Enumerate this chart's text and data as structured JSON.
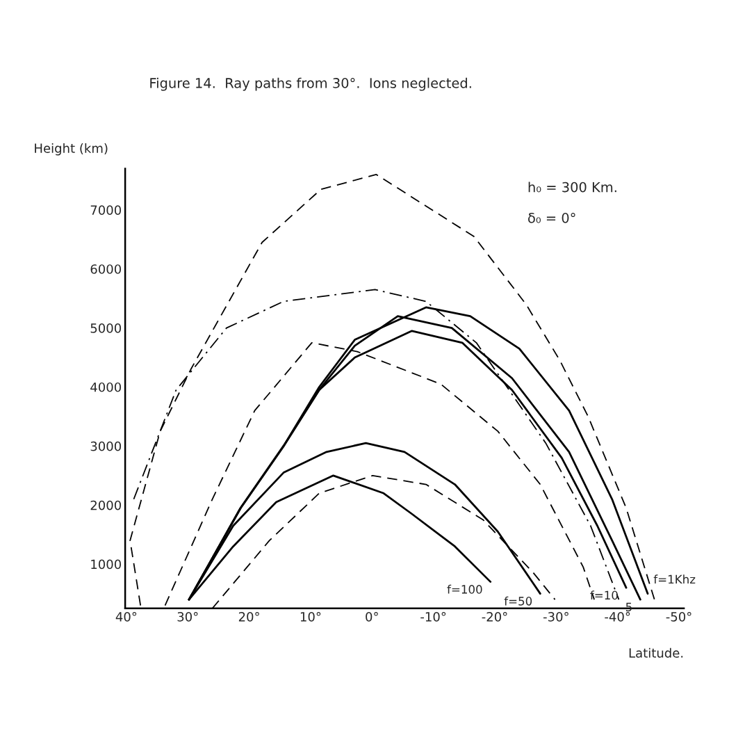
{
  "chart_data": {
    "type": "line",
    "title": "Figure 14.  Ray paths from 30°.  Ions neglected.",
    "xlabel": "Latitude.",
    "ylabel": "Height (km)",
    "annotations": [
      "h₀ = 300 Km.",
      "δ₀ = 0°"
    ],
    "xlim": [
      40.2,
      -50.8
    ],
    "ylim": [
      250,
      7700
    ],
    "xticks": [
      {
        "value": 40,
        "label": "40°"
      },
      {
        "value": 30,
        "label": "30°"
      },
      {
        "value": 20,
        "label": "20°"
      },
      {
        "value": 10,
        "label": "10°"
      },
      {
        "value": 0,
        "label": "0°"
      },
      {
        "value": -10,
        "label": "-10°"
      },
      {
        "value": -20,
        "label": "-20°"
      },
      {
        "value": -30,
        "label": "-30°"
      },
      {
        "value": -40,
        "label": "-40°"
      },
      {
        "value": -50,
        "label": "-50°"
      }
    ],
    "yticks": [
      1000,
      2000,
      3000,
      4000,
      5000,
      6000,
      7000
    ],
    "grid": false,
    "legend": false,
    "series": [
      {
        "name": "f=100",
        "color": "#000000",
        "line_style": "solid",
        "x": [
          29.8,
          22.6,
          15.6,
          6.3,
          -1.9,
          -6.5,
          -13.5,
          -19.3
        ],
        "values": [
          400,
          1300,
          2050,
          2500,
          2200,
          1850,
          1300,
          700
        ]
      },
      {
        "name": "f=50",
        "color": "#000000",
        "line_style": "solid",
        "x": [
          29.8,
          22.6,
          14.4,
          7.4,
          1.0,
          -5.3,
          -13.5,
          -20.5,
          -27.4
        ],
        "values": [
          400,
          1650,
          2550,
          2900,
          3050,
          2900,
          2350,
          1550,
          500
        ]
      },
      {
        "name": "f=10",
        "color": "#000000",
        "line_style": "solid",
        "x": [
          29.8,
          21.4,
          14.4,
          8.6,
          2.8,
          -6.5,
          -14.7,
          -22.8,
          -30.9,
          -36.7,
          -41.4
        ],
        "values": [
          400,
          1950,
          3000,
          3950,
          4500,
          4950,
          4750,
          3950,
          2800,
          1650,
          600
        ]
      },
      {
        "name": "5",
        "color": "#000000",
        "line_style": "solid",
        "x": [
          29.8,
          21.4,
          14.4,
          8.6,
          2.8,
          -4.2,
          -13.0,
          -22.8,
          -32.1,
          -39.1,
          -43.7
        ],
        "values": [
          400,
          1950,
          3000,
          3950,
          4700,
          5200,
          5000,
          4150,
          2900,
          1400,
          400
        ]
      },
      {
        "name": "f=1Khz",
        "color": "#000000",
        "line_style": "solid",
        "x": [
          29.8,
          21.4,
          14.4,
          8.6,
          2.8,
          -8.8,
          -16.0,
          -24.0,
          -32.1,
          -39.1,
          -44.9
        ],
        "values": [
          400,
          1950,
          3000,
          4000,
          4800,
          5350,
          5200,
          4650,
          3600,
          2100,
          500
        ]
      },
      {
        "color": "#000000",
        "line_style": "dashed",
        "x": [
          37.7,
          39.4,
          34.5,
          29.5,
          17.9,
          8.3,
          -0.7,
          -16.6,
          -25.1,
          -30.6,
          -35.2,
          -41.4,
          -46.0
        ],
        "values": [
          300,
          1400,
          3250,
          4300,
          6450,
          7350,
          7600,
          6550,
          5400,
          4450,
          3500,
          1950,
          400
        ]
      },
      {
        "color": "#000000",
        "line_style": "dashdot",
        "x": [
          38.8,
          31.9,
          23.7,
          14.4,
          -0.5,
          -8.8,
          -17.0,
          -28.3,
          -35.6,
          -40.2
        ],
        "values": [
          2100,
          3950,
          5000,
          5450,
          5650,
          5450,
          4750,
          3050,
          1650,
          400
        ]
      },
      {
        "color": "#000000",
        "line_style": "dashed",
        "x": [
          33.7,
          26.0,
          19.1,
          9.8,
          2.4,
          -11.2,
          -20.5,
          -27.4,
          -34.4,
          -36.2
        ],
        "values": [
          300,
          2100,
          3600,
          4750,
          4600,
          4050,
          3250,
          2350,
          950,
          400
        ]
      },
      {
        "color": "#000000",
        "line_style": "dashed",
        "x": [
          26.0,
          16.7,
          8.6,
          -0.1,
          -8.8,
          -18.1,
          -26.3,
          -29.8
        ],
        "values": [
          250,
          1400,
          2200,
          2500,
          2350,
          1750,
          850,
          400
        ]
      }
    ]
  }
}
